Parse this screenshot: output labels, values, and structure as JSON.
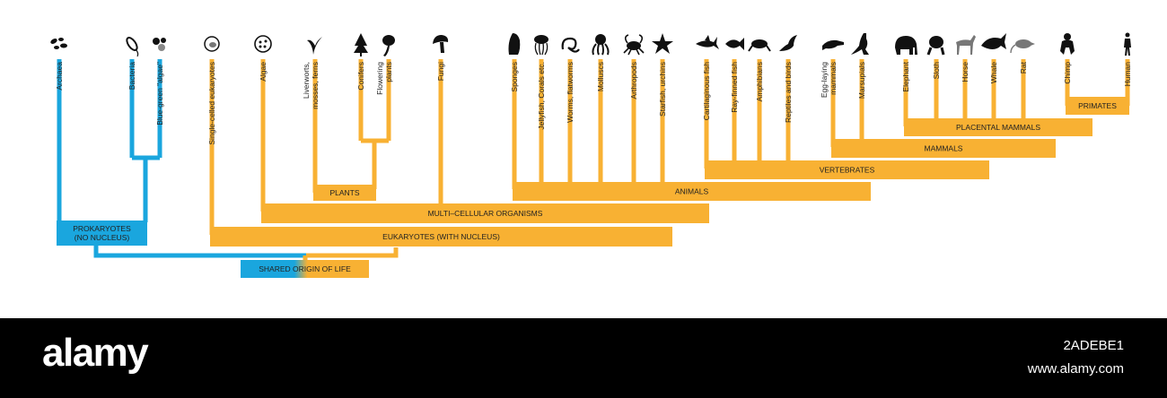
{
  "colors": {
    "prokaryote": "#1aa6de",
    "eukaryote": "#f8b133",
    "icon": "#111111"
  },
  "leaves": [
    {
      "id": "archaea",
      "label": "Archaea",
      "icon": "archaea-icon",
      "color": "prokaryote"
    },
    {
      "id": "bacteria",
      "label": "Bacteria",
      "icon": "bacteria-icon",
      "color": "prokaryote"
    },
    {
      "id": "bluegreen",
      "label": "Blue-green \"algae\"",
      "icon": "blue-green-algae-icon",
      "color": "prokaryote"
    },
    {
      "id": "single",
      "label": "Single-celled eukaryotes",
      "icon": "single-celled-eukaryote-icon",
      "color": "eukaryote"
    },
    {
      "id": "algae",
      "label": "Algae",
      "icon": "algae-icon",
      "color": "eukaryote"
    },
    {
      "id": "liverworts",
      "label": [
        "Liverworts,",
        "mosses, ferns"
      ],
      "icon": "fern-icon",
      "color": "eukaryote"
    },
    {
      "id": "conifers",
      "label": "Conifers",
      "icon": "conifer-icon",
      "color": "eukaryote"
    },
    {
      "id": "flowering",
      "label": [
        "Flowering",
        "plants"
      ],
      "icon": "flowering-plant-icon",
      "color": "eukaryote"
    },
    {
      "id": "fungi",
      "label": "Fungi",
      "icon": "mushroom-icon",
      "color": "eukaryote"
    },
    {
      "id": "sponges",
      "label": "Sponges",
      "icon": "sponge-icon",
      "color": "eukaryote"
    },
    {
      "id": "jellyfish",
      "label": "Jellyfish, Corals etc.",
      "icon": "jellyfish-icon",
      "color": "eukaryote"
    },
    {
      "id": "worms",
      "label": "Worms, flatworms",
      "icon": "worm-icon",
      "color": "eukaryote"
    },
    {
      "id": "molluscs",
      "label": "Molluscs",
      "icon": "octopus-icon",
      "color": "eukaryote"
    },
    {
      "id": "arthropods",
      "label": "Arthropods",
      "icon": "crab-icon",
      "color": "eukaryote"
    },
    {
      "id": "starfish",
      "label": "Starfish, urchins",
      "icon": "starfish-icon",
      "color": "eukaryote"
    },
    {
      "id": "cartilaginous",
      "label": "Cartilaginous fish",
      "icon": "shark-icon",
      "color": "eukaryote"
    },
    {
      "id": "rayfinned",
      "label": "Ray-finned fish",
      "icon": "fish-icon",
      "color": "eukaryote"
    },
    {
      "id": "amphibians",
      "label": "Amphibians",
      "icon": "frog-icon",
      "color": "eukaryote"
    },
    {
      "id": "reptiles",
      "label": "Reptiles and birds",
      "icon": "bird-icon",
      "color": "eukaryote"
    },
    {
      "id": "egglaying",
      "label": [
        "Egg-laying",
        "mammals"
      ],
      "icon": "platypus-icon",
      "color": "eukaryote"
    },
    {
      "id": "marsupials",
      "label": "Marsupials",
      "icon": "kangaroo-icon",
      "color": "eukaryote"
    },
    {
      "id": "elephant",
      "label": "Elephant",
      "icon": "elephant-icon",
      "color": "eukaryote"
    },
    {
      "id": "sloth",
      "label": "Sloth",
      "icon": "sloth-icon",
      "color": "eukaryote"
    },
    {
      "id": "horse",
      "label": "Horse",
      "icon": "horse-icon",
      "color": "eukaryote"
    },
    {
      "id": "whale",
      "label": "Whale",
      "icon": "whale-icon",
      "color": "eukaryote"
    },
    {
      "id": "rat",
      "label": "Rat",
      "icon": "rat-icon",
      "color": "eukaryote"
    },
    {
      "id": "chimp",
      "label": "Chimp",
      "icon": "chimp-icon",
      "color": "eukaryote"
    },
    {
      "id": "human",
      "label": "Human",
      "icon": "human-icon",
      "color": "eukaryote"
    }
  ],
  "groups": [
    {
      "id": "primates",
      "label": "PRIMATES",
      "color": "eukaryote"
    },
    {
      "id": "placental",
      "label": "PLACENTAL MAMMALS",
      "color": "eukaryote"
    },
    {
      "id": "mammals",
      "label": "MAMMALS",
      "color": "eukaryote"
    },
    {
      "id": "vertebrates",
      "label": "VERTEBRATES",
      "color": "eukaryote"
    },
    {
      "id": "animals",
      "label": "ANIMALS",
      "color": "eukaryote"
    },
    {
      "id": "plants",
      "label": "PLANTS",
      "color": "eukaryote"
    },
    {
      "id": "multicellular",
      "label": "MULTI–CELLULAR ORGANISMS",
      "color": "eukaryote"
    },
    {
      "id": "eukaryotes",
      "label": "EUKARYOTES (WITH NUCLEUS)",
      "color": "eukaryote"
    },
    {
      "id": "prokaryotes",
      "label": [
        "PROKARYOTES",
        "(NO NUCLEUS)"
      ],
      "color": "prokaryote"
    },
    {
      "id": "origin",
      "label": "SHARED ORIGIN OF LIFE",
      "color": "gradient"
    }
  ],
  "footer": {
    "brand": "alamy",
    "image_id": "2ADEBE1",
    "url": "www.alamy.com"
  }
}
